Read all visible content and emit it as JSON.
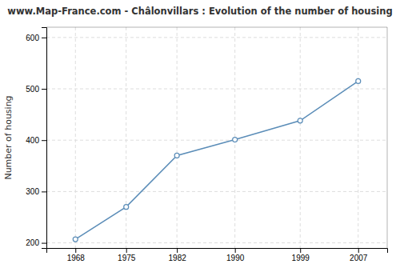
{
  "chart_data": {
    "type": "line",
    "title": "www.Map-France.com - Châlonvillars : Evolution of the number of housing",
    "ylabel": "Number of housing",
    "x": [
      1968,
      1975,
      1982,
      1990,
      1999,
      2007
    ],
    "values": [
      207,
      270,
      370,
      401,
      438,
      515
    ],
    "color": "#5b8db8",
    "marker": "circle",
    "xlim": [
      1964,
      2011
    ],
    "ylim": [
      190,
      620
    ],
    "xticks": [
      1968,
      1975,
      1982,
      1990,
      1999,
      2007
    ],
    "yticks": [
      200,
      300,
      400,
      500,
      600
    ],
    "grid": true
  }
}
